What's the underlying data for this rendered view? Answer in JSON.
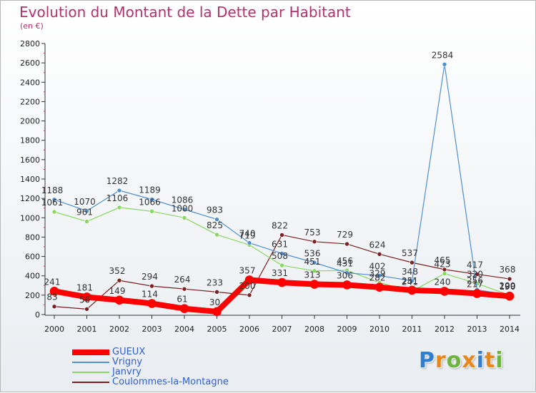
{
  "title": "Evolution du Montant de la Dette par Habitant",
  "subtitle": "(en €)",
  "logo": {
    "text": "Proxiti",
    "colors": [
      "#2f7fd0",
      "#e8861a",
      "#6cb33f",
      "#e8861a",
      "#2f7fd0",
      "#e8861a",
      "#6cb33f"
    ]
  },
  "chart_data": {
    "type": "line",
    "x": [
      "2000",
      "2001",
      "2002",
      "2003",
      "2004",
      "2005",
      "2006",
      "2007",
      "2008",
      "2009",
      "2010",
      "2011",
      "2012",
      "2013",
      "2014"
    ],
    "ylim": [
      0,
      2800
    ],
    "yticks": [
      0,
      200,
      400,
      600,
      800,
      1000,
      1200,
      1400,
      1600,
      1800,
      2000,
      2200,
      2400,
      2600,
      2800
    ],
    "grid": false,
    "legend": "bottom-left",
    "series": [
      {
        "name": "Coulommes-la-Montagne",
        "color": "#7a2020",
        "width": 1.2,
        "marker": 3,
        "values": [
          83,
          56,
          352,
          294,
          264,
          233,
          200,
          822,
          753,
          729,
          624,
          537,
          465,
          417,
          368
        ],
        "labels": [
          "83",
          "56",
          "352",
          "294",
          "264",
          "233",
          "200",
          "822",
          "753",
          "729",
          "624",
          "537",
          "465",
          "417",
          "368"
        ]
      },
      {
        "name": "Janvry",
        "color": "#88d860",
        "width": 1.2,
        "marker": 3,
        "values": [
          1061,
          961,
          1106,
          1066,
          1000,
          825,
          719,
          508,
          451,
          456,
          329,
          241,
          423,
          320,
          200
        ],
        "labels": [
          "1061",
          "961",
          "1106",
          "1066",
          "1000",
          "825",
          "719",
          "508",
          "451",
          "456",
          "329",
          "241",
          "423",
          "320",
          "200"
        ]
      },
      {
        "name": "Vrigny",
        "color": "#5090d0",
        "width": 1.2,
        "marker": 3,
        "values": [
          1188,
          1070,
          1282,
          1189,
          1086,
          983,
          740,
          631,
          536,
          431,
          402,
          348,
          2584,
          256,
          199
        ],
        "labels": [
          "1188",
          "1070",
          "1282",
          "1189",
          "1086",
          "983",
          "740",
          "631",
          "536",
          "431",
          "402",
          "348",
          "2584",
          "256",
          "199"
        ]
      },
      {
        "name": "GUEUX",
        "color": "#ff0000",
        "width": 8,
        "marker": 6,
        "values": [
          241,
          181,
          149,
          114,
          61,
          30,
          357,
          331,
          313,
          306,
          282,
          251,
          240,
          217,
          190
        ],
        "labels": [
          "241",
          "181",
          "149",
          "114",
          "61",
          "30",
          "357",
          "331",
          "313",
          "306",
          "282",
          "251",
          "240",
          "217",
          "190"
        ]
      }
    ]
  }
}
